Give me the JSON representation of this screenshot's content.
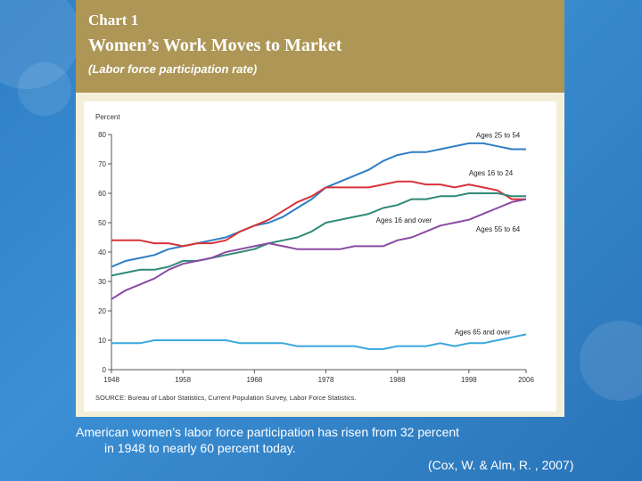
{
  "slide": {
    "chart_label": "Chart 1",
    "chart_title": "Women’s Work Moves to Market",
    "chart_subtitle": "(Labor force participation rate)",
    "caption_line1": "American women’s labor force participation has risen from 32 percent",
    "caption_line2": "in 1948 to nearly 60 percent today.",
    "citation": "(Cox, W.  & Alm, R. , 2007)"
  },
  "colors": {
    "header": "#ad9656",
    "card": "#f4efd9",
    "ages_25_54": "#2f7ec4",
    "ages_16_24": "#d8333a",
    "ages_16_over": "#2f8a77",
    "ages_55_64": "#8b4aa3",
    "ages_65_over": "#3aa8dc"
  },
  "chart_data": {
    "type": "line",
    "title": "Women’s Work Moves to Market",
    "subtitle": "(Labor force participation rate)",
    "ylabel": "Percent",
    "xlabel": "",
    "ylim": [
      0,
      80
    ],
    "yticks": [
      0,
      10,
      20,
      30,
      40,
      50,
      60,
      70,
      80
    ],
    "xlim": [
      1948,
      2006
    ],
    "xticks": [
      1948,
      1958,
      1968,
      1978,
      1988,
      1998,
      2006
    ],
    "grid": false,
    "source": "SOURCE: Bureau of Labor Statistics, Current Population Survey, Labor Force Statistics.",
    "x": [
      1948,
      1950,
      1952,
      1954,
      1956,
      1958,
      1960,
      1962,
      1964,
      1966,
      1968,
      1970,
      1972,
      1974,
      1976,
      1978,
      1980,
      1982,
      1984,
      1986,
      1988,
      1990,
      1992,
      1994,
      1996,
      1998,
      2000,
      2002,
      2004,
      2006
    ],
    "series": [
      {
        "name": "Ages 25 to 54",
        "color_key": "ages_25_54",
        "values": [
          35,
          37,
          38,
          39,
          41,
          42,
          43,
          44,
          45,
          47,
          49,
          50,
          52,
          55,
          58,
          62,
          64,
          66,
          68,
          71,
          73,
          74,
          74,
          75,
          76,
          77,
          77,
          76,
          75,
          75
        ]
      },
      {
        "name": "Ages 16 to 24",
        "color_key": "ages_16_24",
        "values": [
          44,
          44,
          44,
          43,
          43,
          42,
          43,
          43,
          44,
          47,
          49,
          51,
          54,
          57,
          59,
          62,
          62,
          62,
          62,
          63,
          64,
          64,
          63,
          63,
          62,
          63,
          62,
          61,
          58,
          58
        ]
      },
      {
        "name": "Ages 16 and over",
        "color_key": "ages_16_over",
        "values": [
          32,
          33,
          34,
          34,
          35,
          37,
          37,
          38,
          39,
          40,
          41,
          43,
          44,
          45,
          47,
          50,
          51,
          52,
          53,
          55,
          56,
          58,
          58,
          59,
          59,
          60,
          60,
          60,
          59,
          59
        ]
      },
      {
        "name": "Ages 55 to 64",
        "color_key": "ages_55_64",
        "values": [
          24,
          27,
          29,
          31,
          34,
          36,
          37,
          38,
          40,
          41,
          42,
          43,
          42,
          41,
          41,
          41,
          41,
          42,
          42,
          42,
          44,
          45,
          47,
          49,
          50,
          51,
          53,
          55,
          57,
          58
        ]
      },
      {
        "name": "Ages 65 and over",
        "color_key": "ages_65_over",
        "values": [
          9,
          9,
          9,
          10,
          10,
          10,
          10,
          10,
          10,
          9,
          9,
          9,
          9,
          8,
          8,
          8,
          8,
          8,
          7,
          7,
          8,
          8,
          8,
          9,
          8,
          9,
          9,
          10,
          11,
          12
        ]
      }
    ],
    "annotations": [
      {
        "text": "Ages 25 to 54",
        "series": "Ages 25 to 54",
        "x": 1999,
        "y": 79
      },
      {
        "text": "Ages 16 to 24",
        "series": "Ages 16 to 24",
        "x": 1998,
        "y": 66
      },
      {
        "text": "Ages 16 and over",
        "series": "Ages 16 and over",
        "x": 1985,
        "y": 50
      },
      {
        "text": "Ages 55 to 64",
        "series": "Ages 55 to 64",
        "x": 1999,
        "y": 47
      },
      {
        "text": "Ages 65 and over",
        "series": "Ages 65 and over",
        "x": 1996,
        "y": 12
      }
    ]
  }
}
